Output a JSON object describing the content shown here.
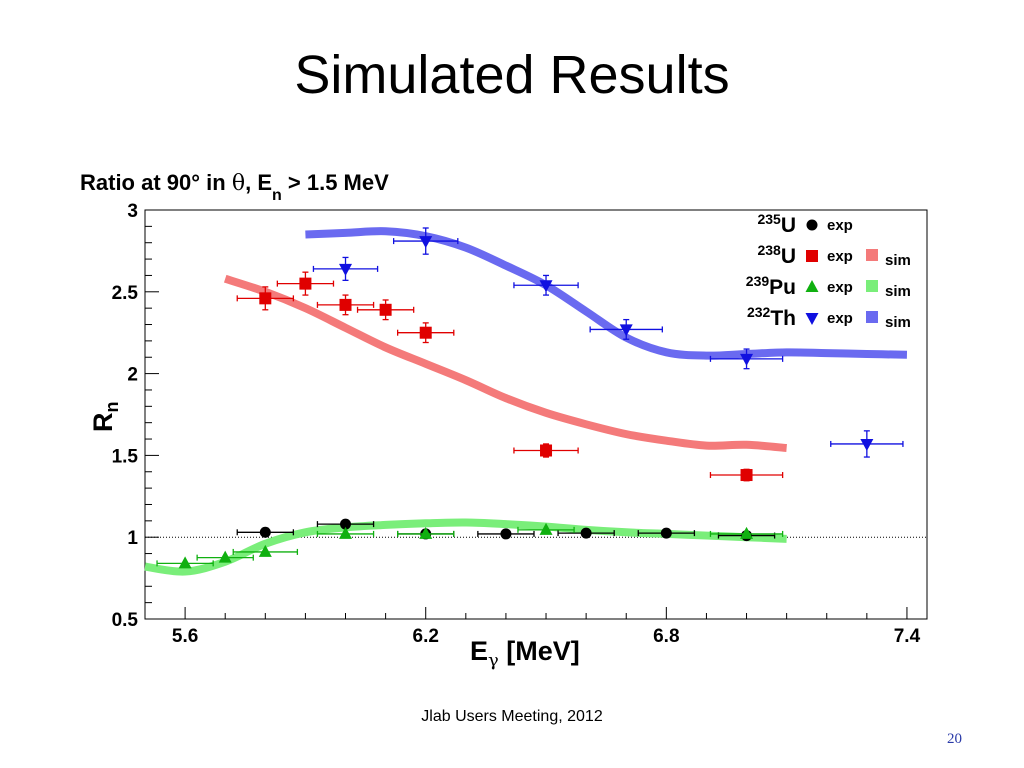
{
  "slide": {
    "title": "Simulated Results",
    "footer": "Jlab Users Meeting, 2012",
    "page_number": "20"
  },
  "chart_data": {
    "type": "scatter",
    "title": {
      "prefix": "Ratio at 90° in ",
      "theta": "θ",
      "mid": ", E",
      "sub": "n",
      "suffix": " > 1.5 MeV"
    },
    "xlabel": {
      "main": "E",
      "sub": "γ",
      "suffix": " [MeV]"
    },
    "ylabel": {
      "main": "R",
      "sub": "n"
    },
    "xlim": [
      5.5,
      7.45
    ],
    "ylim": [
      0.5,
      3.0
    ],
    "x_ticks": [
      5.6,
      6.2,
      6.8,
      7.4
    ],
    "x_tick_labels": [
      "5.6",
      "6.2",
      "6.8",
      "7.4"
    ],
    "y_ticks": [
      0.5,
      1.0,
      1.5,
      2.0,
      2.5,
      3.0
    ],
    "y_tick_labels": [
      "0.5",
      "1",
      "1.5",
      "2",
      "2.5",
      "3"
    ],
    "reference_line": 1.0,
    "grid": false,
    "legend_position": "top-right",
    "series": [
      {
        "label": {
          "mass": "235",
          "symbol": "U"
        },
        "exp_label": "exp",
        "sim_label": "",
        "marker": "circle",
        "color": "#000000",
        "sim_color": "",
        "points": [
          {
            "x": 5.8,
            "y": 1.03,
            "xerr": 0.07,
            "yerr": 0.0
          },
          {
            "x": 6.0,
            "y": 1.08,
            "xerr": 0.07,
            "yerr": 0.0
          },
          {
            "x": 6.2,
            "y": 1.02,
            "xerr": 0.07,
            "yerr": 0.0
          },
          {
            "x": 6.4,
            "y": 1.02,
            "xerr": 0.07,
            "yerr": 0.0
          },
          {
            "x": 6.6,
            "y": 1.025,
            "xerr": 0.07,
            "yerr": 0.0
          },
          {
            "x": 6.8,
            "y": 1.025,
            "xerr": 0.07,
            "yerr": 0.0
          },
          {
            "x": 7.0,
            "y": 1.01,
            "xerr": 0.07,
            "yerr": 0.0
          }
        ],
        "sim": []
      },
      {
        "label": {
          "mass": "238",
          "symbol": "U"
        },
        "exp_label": "exp",
        "sim_label": "sim",
        "marker": "square",
        "color": "#e00000",
        "sim_color": "#f47a7a",
        "points": [
          {
            "x": 5.8,
            "y": 2.46,
            "xerr": 0.07,
            "yerr": 0.07
          },
          {
            "x": 5.9,
            "y": 2.55,
            "xerr": 0.07,
            "yerr": 0.07
          },
          {
            "x": 6.0,
            "y": 2.42,
            "xerr": 0.07,
            "yerr": 0.06
          },
          {
            "x": 6.1,
            "y": 2.39,
            "xerr": 0.07,
            "yerr": 0.06
          },
          {
            "x": 6.2,
            "y": 2.25,
            "xerr": 0.07,
            "yerr": 0.06
          },
          {
            "x": 6.5,
            "y": 1.53,
            "xerr": 0.08,
            "yerr": 0.04
          },
          {
            "x": 7.0,
            "y": 1.38,
            "xerr": 0.09,
            "yerr": 0.035
          }
        ],
        "sim": [
          {
            "x": 5.7,
            "y": 2.58
          },
          {
            "x": 5.8,
            "y": 2.5
          },
          {
            "x": 5.9,
            "y": 2.4
          },
          {
            "x": 6.0,
            "y": 2.28
          },
          {
            "x": 6.1,
            "y": 2.16
          },
          {
            "x": 6.2,
            "y": 2.06
          },
          {
            "x": 6.3,
            "y": 1.96
          },
          {
            "x": 6.4,
            "y": 1.85
          },
          {
            "x": 6.5,
            "y": 1.76
          },
          {
            "x": 6.6,
            "y": 1.69
          },
          {
            "x": 6.7,
            "y": 1.63
          },
          {
            "x": 6.8,
            "y": 1.59
          },
          {
            "x": 6.9,
            "y": 1.56
          },
          {
            "x": 7.0,
            "y": 1.565
          },
          {
            "x": 7.1,
            "y": 1.545
          }
        ]
      },
      {
        "label": {
          "mass": "239",
          "symbol": "Pu"
        },
        "exp_label": "exp",
        "sim_label": "sim",
        "marker": "triangle-up",
        "color": "#10b010",
        "sim_color": "#7aee7a",
        "points": [
          {
            "x": 5.6,
            "y": 0.84,
            "xerr": 0.07,
            "yerr": 0.0
          },
          {
            "x": 5.7,
            "y": 0.875,
            "xerr": 0.07,
            "yerr": 0.0
          },
          {
            "x": 5.8,
            "y": 0.91,
            "xerr": 0.08,
            "yerr": 0.0
          },
          {
            "x": 6.0,
            "y": 1.02,
            "xerr": 0.07,
            "yerr": 0.0
          },
          {
            "x": 6.2,
            "y": 1.02,
            "xerr": 0.07,
            "yerr": 0.0
          },
          {
            "x": 6.5,
            "y": 1.045,
            "xerr": 0.07,
            "yerr": 0.0
          },
          {
            "x": 7.0,
            "y": 1.02,
            "xerr": 0.09,
            "yerr": 0.0
          }
        ],
        "sim": [
          {
            "x": 5.5,
            "y": 0.82
          },
          {
            "x": 5.6,
            "y": 0.79
          },
          {
            "x": 5.7,
            "y": 0.85
          },
          {
            "x": 5.8,
            "y": 0.96
          },
          {
            "x": 5.9,
            "y": 1.03
          },
          {
            "x": 6.0,
            "y": 1.06
          },
          {
            "x": 6.1,
            "y": 1.075
          },
          {
            "x": 6.2,
            "y": 1.085
          },
          {
            "x": 6.3,
            "y": 1.09
          },
          {
            "x": 6.4,
            "y": 1.08
          },
          {
            "x": 6.5,
            "y": 1.065
          },
          {
            "x": 6.6,
            "y": 1.045
          },
          {
            "x": 6.7,
            "y": 1.03
          },
          {
            "x": 6.8,
            "y": 1.02
          },
          {
            "x": 6.9,
            "y": 1.01
          },
          {
            "x": 7.0,
            "y": 1.0
          },
          {
            "x": 7.1,
            "y": 0.99
          }
        ]
      },
      {
        "label": {
          "mass": "232",
          "symbol": "Th"
        },
        "exp_label": "exp",
        "sim_label": "sim",
        "marker": "triangle-down",
        "color": "#1010e0",
        "sim_color": "#6a6af0",
        "points": [
          {
            "x": 6.0,
            "y": 2.64,
            "xerr": 0.08,
            "yerr": 0.07
          },
          {
            "x": 6.2,
            "y": 2.81,
            "xerr": 0.08,
            "yerr": 0.08
          },
          {
            "x": 6.5,
            "y": 2.54,
            "xerr": 0.08,
            "yerr": 0.06
          },
          {
            "x": 6.7,
            "y": 2.27,
            "xerr": 0.09,
            "yerr": 0.06
          },
          {
            "x": 7.0,
            "y": 2.09,
            "xerr": 0.09,
            "yerr": 0.06
          },
          {
            "x": 7.3,
            "y": 1.57,
            "xerr": 0.09,
            "yerr": 0.08
          }
        ],
        "sim": [
          {
            "x": 5.9,
            "y": 2.85
          },
          {
            "x": 6.0,
            "y": 2.86
          },
          {
            "x": 6.1,
            "y": 2.87
          },
          {
            "x": 6.2,
            "y": 2.84
          },
          {
            "x": 6.3,
            "y": 2.77
          },
          {
            "x": 6.4,
            "y": 2.66
          },
          {
            "x": 6.5,
            "y": 2.54
          },
          {
            "x": 6.6,
            "y": 2.38
          },
          {
            "x": 6.7,
            "y": 2.22
          },
          {
            "x": 6.8,
            "y": 2.13
          },
          {
            "x": 6.9,
            "y": 2.11
          },
          {
            "x": 7.0,
            "y": 2.12
          },
          {
            "x": 7.1,
            "y": 2.13
          },
          {
            "x": 7.2,
            "y": 2.125
          },
          {
            "x": 7.3,
            "y": 2.12
          },
          {
            "x": 7.4,
            "y": 2.115
          }
        ]
      }
    ]
  }
}
